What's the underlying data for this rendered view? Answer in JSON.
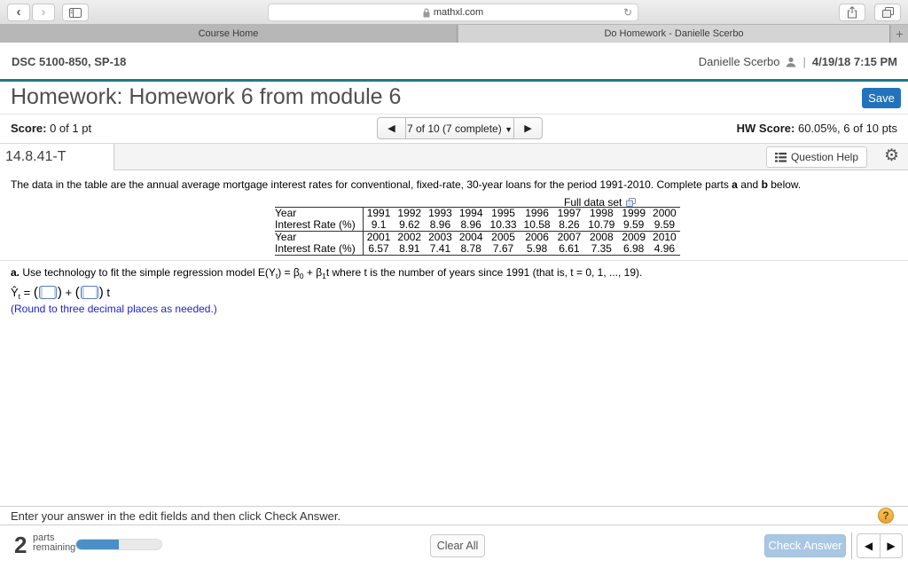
{
  "colors": {
    "accent_teal": "#1e7a8c",
    "save_button_blue": "#2273bb",
    "answer_note_blue": "#2222cc",
    "check_answer_blue": "#a9c7e2",
    "progress_fill_blue": "#4a8fc7",
    "help_badge_orange": "#eda12f"
  },
  "browser": {
    "back_icon": "‹",
    "forward_icon": "›",
    "address_url": "mathxl.com",
    "refresh_icon": "↻",
    "tabs": [
      {
        "label": "Course Home"
      },
      {
        "label": "Do Homework - Danielle Scerbo"
      }
    ],
    "new_tab_icon": "+"
  },
  "app_header": {
    "course_code": "DSC 5100-850, SP-18",
    "user_name": "Danielle Scerbo",
    "separator": "|",
    "datetime": "4/19/18 7:15 PM"
  },
  "title_bar": {
    "title": "Homework: Homework 6 from module 6",
    "save_label": "Save"
  },
  "score_bar": {
    "score_label": "Score:",
    "score_value": " 0 of 1 pt",
    "prev_icon": "◀",
    "position_label": "7 of 10 (7 complete) ",
    "dropdown_icon": "▼",
    "next_icon": "▶",
    "hw_score_label": "HW Score:",
    "hw_score_value": " 60.05%, 6 of 10 pts"
  },
  "question_bar": {
    "question_id": "14.8.41-T",
    "help_label": "Question Help",
    "gear_icon": "⚙"
  },
  "problem": {
    "statement_start": "The data in the table are the annual average mortgage interest rates for conventional, fixed-rate, 30-year loans for the period 1991-2010. Complete parts ",
    "bold_a": "a",
    "statement_and": " and ",
    "bold_b": "b",
    "statement_end": " below.",
    "full_data_set_label": "Full data set",
    "table": {
      "rows": [
        {
          "label": "Year",
          "values": [
            "1991",
            "1992",
            "1993",
            "1994",
            "1995",
            "1996",
            "1997",
            "1998",
            "1999",
            "2000"
          ]
        },
        {
          "label": "Interest Rate (%)",
          "values": [
            "9.1",
            "9.62",
            "8.96",
            "8.96",
            "10.33",
            "10.58",
            "8.26",
            "10.79",
            "9.59",
            "9.59"
          ]
        },
        {
          "label": "Year",
          "values": [
            "2001",
            "2002",
            "2003",
            "2004",
            "2005",
            "2006",
            "2007",
            "2008",
            "2009",
            "2010"
          ]
        },
        {
          "label": "Interest Rate (%)",
          "values": [
            "6.57",
            "8.91",
            "7.41",
            "8.78",
            "7.67",
            "5.98",
            "6.61",
            "7.35",
            "6.98",
            "4.96"
          ]
        }
      ]
    }
  },
  "part_a": {
    "label": "a.",
    "text_1": " Use technology to fit the simple regression model E",
    "math_open": "(Y",
    "sub_t": "t",
    "math_eq": ") = β",
    "sub_0": "0",
    "math_plus": " + β",
    "sub_1": "1",
    "math_t": "t",
    "text_2": " where t is the number of years since 1991 (that is, t = 0, 1, ..., 19)."
  },
  "answer": {
    "y_hat": "Ŷ",
    "sub_t": "t",
    "equals": " = ",
    "paren_open": "(",
    "paren_close": ")",
    "plus": " + ",
    "t_suffix": " t",
    "round_note": "(Round to three decimal places as needed.)"
  },
  "hint_bar": {
    "message": "Enter your answer in the edit fields and then click Check Answer.",
    "help_icon": "?"
  },
  "footer": {
    "parts_count": "2",
    "parts_word_1": "parts",
    "parts_word_2": "remaining",
    "progress_percent": 50,
    "clear_all_label": "Clear All",
    "check_answer_label": "Check Answer",
    "prev_icon": "◀",
    "next_icon": "▶"
  }
}
